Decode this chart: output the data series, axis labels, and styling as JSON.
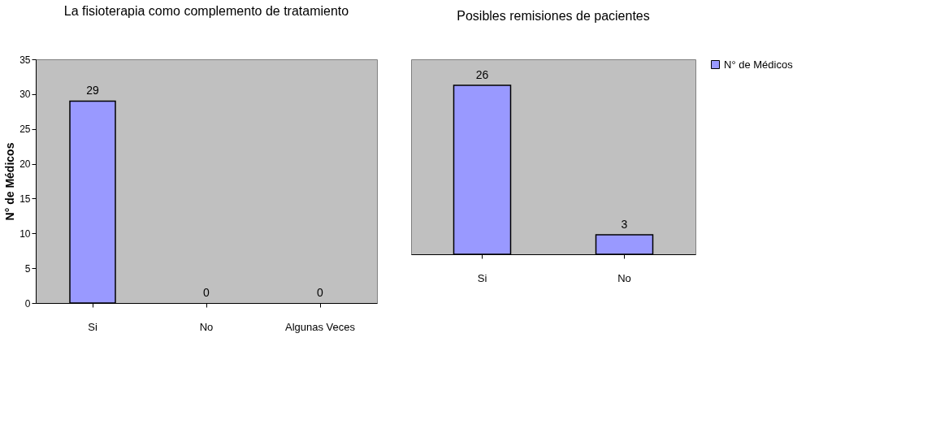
{
  "chart_data": [
    {
      "type": "bar",
      "title": "La fisioterapia como complemento de tratamiento",
      "ylabel": "N° de Médicos",
      "categories": [
        "Si",
        "No",
        "Algunas Veces"
      ],
      "values": [
        29,
        0,
        0
      ],
      "color": "#9999ff",
      "ylim": [
        0,
        35
      ],
      "yticks": [
        0,
        5,
        10,
        15,
        20,
        25,
        30,
        35
      ],
      "data_labels": true,
      "grid": false
    },
    {
      "type": "bar",
      "title": "Posibles remisiones de pacientes",
      "categories": [
        "Si",
        "No"
      ],
      "series": [
        {
          "name": "N° de Médicos",
          "color": "#9999ff",
          "values": [
            26,
            3
          ]
        }
      ],
      "ylim": [
        0,
        30
      ],
      "tick_labels": "x",
      "data_labels": true,
      "legend": "right",
      "grid": false
    }
  ]
}
